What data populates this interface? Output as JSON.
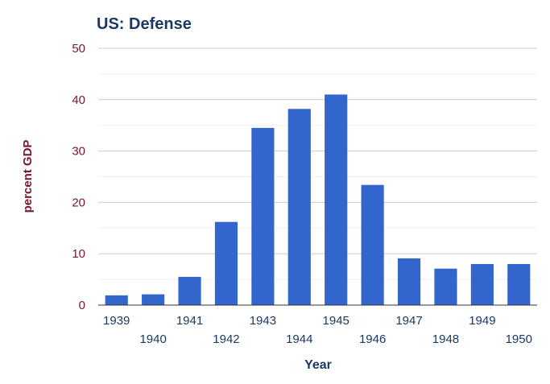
{
  "chart_data": {
    "type": "bar",
    "title": "US: Defense",
    "xlabel": "Year",
    "ylabel": "percent GDP",
    "categories": [
      "1939",
      "1940",
      "1941",
      "1942",
      "1943",
      "1944",
      "1945",
      "1946",
      "1947",
      "1948",
      "1949",
      "1950"
    ],
    "values": [
      1.9,
      2.1,
      5.5,
      16.2,
      34.5,
      38.2,
      41.0,
      23.4,
      9.1,
      7.1,
      8.0,
      8.0
    ],
    "ylim": [
      0,
      50
    ],
    "yticks": [
      "0",
      "10",
      "20",
      "30",
      "40",
      "50"
    ],
    "grid": true,
    "legend": "none",
    "colors": {
      "bar": "#3366cc",
      "title": "#1a3a63",
      "axis_text_y": "#7a1630",
      "axis_text_x": "#1a3a63"
    }
  }
}
